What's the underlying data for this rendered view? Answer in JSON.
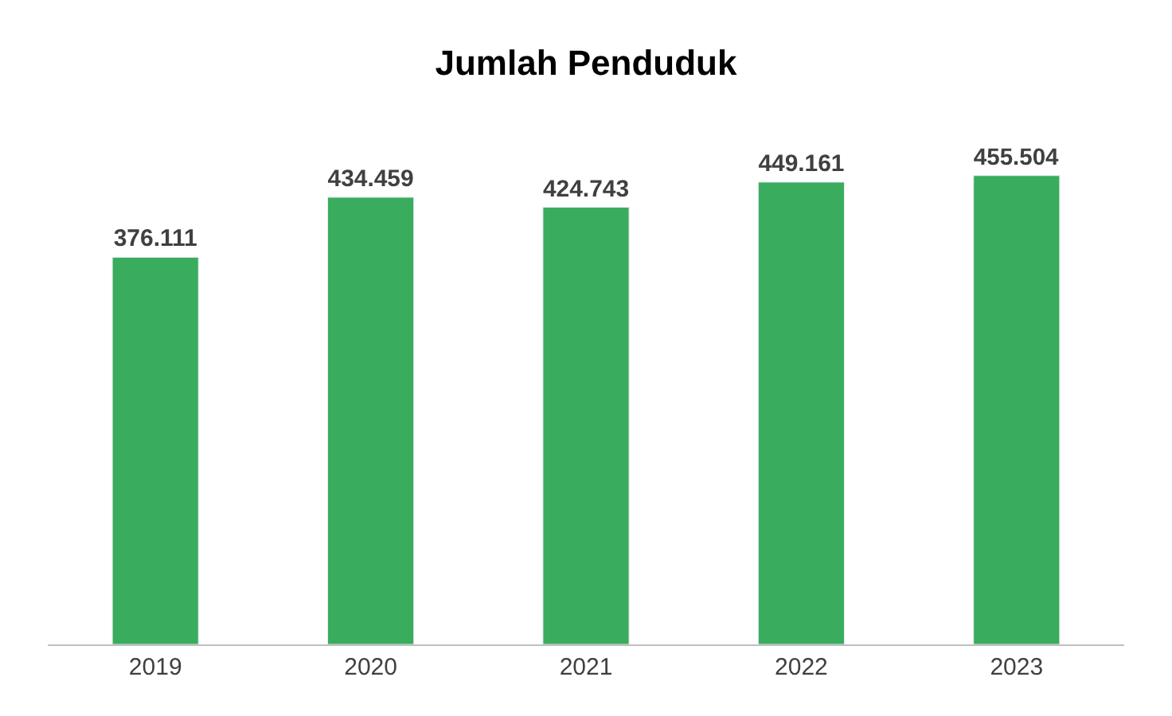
{
  "chart_data": {
    "type": "bar",
    "title": "Jumlah Penduduk",
    "categories": [
      "2019",
      "2020",
      "2021",
      "2022",
      "2023"
    ],
    "values": [
      376111,
      434459,
      424743,
      449161,
      455504
    ],
    "value_labels": [
      "376.111",
      "434.459",
      "424.743",
      "449.161",
      "455.504"
    ],
    "color": "#3aac5d"
  }
}
